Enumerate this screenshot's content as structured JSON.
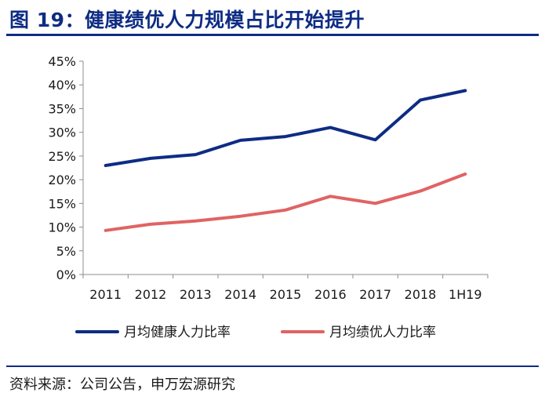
{
  "title": "图 19：健康绩优人力规模占比开始提升",
  "source": "资料来源：公司公告，申万宏源研究",
  "chart_data": {
    "type": "line",
    "title": "健康绩优人力规模占比开始提升",
    "xlabel": "",
    "ylabel": "",
    "categories": [
      "2011",
      "2012",
      "2013",
      "2014",
      "2015",
      "2016",
      "2017",
      "2018",
      "1H19"
    ],
    "ylim": [
      0,
      45
    ],
    "yticks": [
      "0%",
      "5%",
      "10%",
      "15%",
      "20%",
      "25%",
      "30%",
      "35%",
      "40%",
      "45%"
    ],
    "ytick_values": [
      0,
      5,
      10,
      15,
      20,
      25,
      30,
      35,
      40,
      45
    ],
    "legend_position": "bottom",
    "series": [
      {
        "name": "月均健康人力比率",
        "color": "#0e2c83",
        "values": [
          23.0,
          24.5,
          25.3,
          28.3,
          29.1,
          31.0,
          28.4,
          36.8,
          38.8
        ]
      },
      {
        "name": "月均绩优人力比率",
        "color": "#e06363",
        "values": [
          9.3,
          10.6,
          11.3,
          12.3,
          13.6,
          16.5,
          15.0,
          17.6,
          21.2
        ]
      }
    ]
  }
}
